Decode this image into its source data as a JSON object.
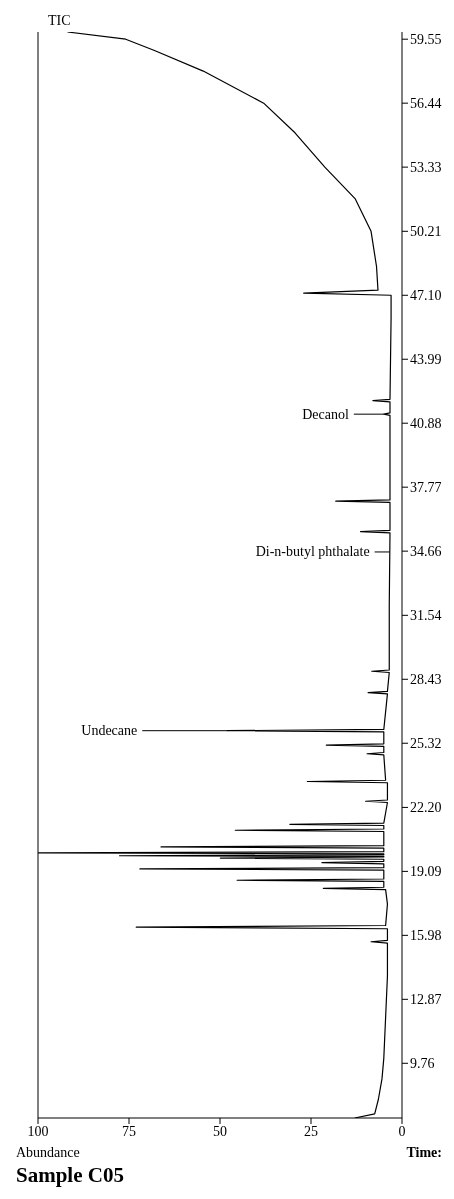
{
  "chart_data": {
    "type": "line",
    "title": "Sample C05",
    "xlabel": "Time:",
    "ylabel": "Abundance",
    "color": "#000000",
    "orientation": "horizontal",
    "xlim": [
      100,
      0
    ],
    "xticks": [
      0,
      25,
      50,
      75,
      100
    ],
    "ylim": [
      7.1,
      59.9
    ],
    "yticks": [
      9.76,
      12.87,
      15.98,
      19.09,
      {
        "value": 22.2,
        "label": "22.20"
      },
      25.32,
      28.43,
      31.54,
      34.66,
      37.77,
      40.88,
      43.99,
      {
        "value": 47.1,
        "label": "47.10"
      },
      50.21,
      53.33,
      56.44,
      59.55
    ],
    "x": [
      7.1,
      7.3,
      8.0,
      9.0,
      10.0,
      12.0,
      14.0,
      15.6,
      15.67,
      15.74,
      16.3,
      16.38,
      16.46,
      17.5,
      18.2,
      18.26,
      18.32,
      18.6,
      18.66,
      18.72,
      19.15,
      19.21,
      19.27,
      19.46,
      19.52,
      19.58,
      19.68,
      19.73,
      19.79,
      19.82,
      19.85,
      19.9,
      19.94,
      19.99,
      20.05,
      20.22,
      20.28,
      20.34,
      21.03,
      21.09,
      21.15,
      21.32,
      21.38,
      21.44,
      22.44,
      22.5,
      22.56,
      23.4,
      23.46,
      23.52,
      24.75,
      24.81,
      24.87,
      25.17,
      25.23,
      25.29,
      25.87,
      25.93,
      25.99,
      27.72,
      27.78,
      27.84,
      28.76,
      28.82,
      28.88,
      32.0,
      35.55,
      35.61,
      35.67,
      37.03,
      37.09,
      37.15,
      40.0,
      41.26,
      41.32,
      41.38,
      41.92,
      41.98,
      42.04,
      46.0,
      47.1,
      47.2,
      47.35,
      48.5,
      50.21,
      51.8,
      53.33,
      55.0,
      56.44,
      58.0,
      59.0,
      59.55,
      59.9
    ],
    "values": [
      13,
      7.5,
      6.5,
      5.5,
      5,
      4.5,
      4,
      4,
      8.5,
      4,
      4,
      73,
      4.5,
      4,
      4.5,
      21.6,
      5,
      5,
      45.3,
      5,
      5,
      72,
      5,
      5,
      22,
      5,
      5,
      49.9,
      5,
      5,
      77.6,
      5,
      5,
      100,
      5,
      5,
      66.2,
      5,
      5,
      45.8,
      5,
      5,
      30.8,
      5,
      4,
      10,
      4,
      4,
      26,
      4.5,
      5,
      9.6,
      5,
      5,
      20.8,
      5,
      5,
      48,
      5,
      4,
      9.3,
      4,
      3.5,
      8.3,
      3.5,
      3.5,
      3.3,
      11.4,
      3.3,
      3.3,
      18.2,
      3.3,
      3.3,
      3.3,
      5,
      3.3,
      3.3,
      8,
      3.3,
      3,
      3,
      27,
      6.6,
      7,
      8.5,
      12.9,
      21.2,
      29.4,
      38,
      54.6,
      68,
      75.9,
      91.9
    ],
    "annotations": [
      "TIC",
      {
        "text": "Undecane",
        "x": 48,
        "y": 25.93
      },
      {
        "text": "Di-n-butyl phthalate",
        "x": 3.4,
        "y": 34.62
      },
      {
        "text": "Decanol",
        "x": 5,
        "y": 41.32
      }
    ]
  }
}
